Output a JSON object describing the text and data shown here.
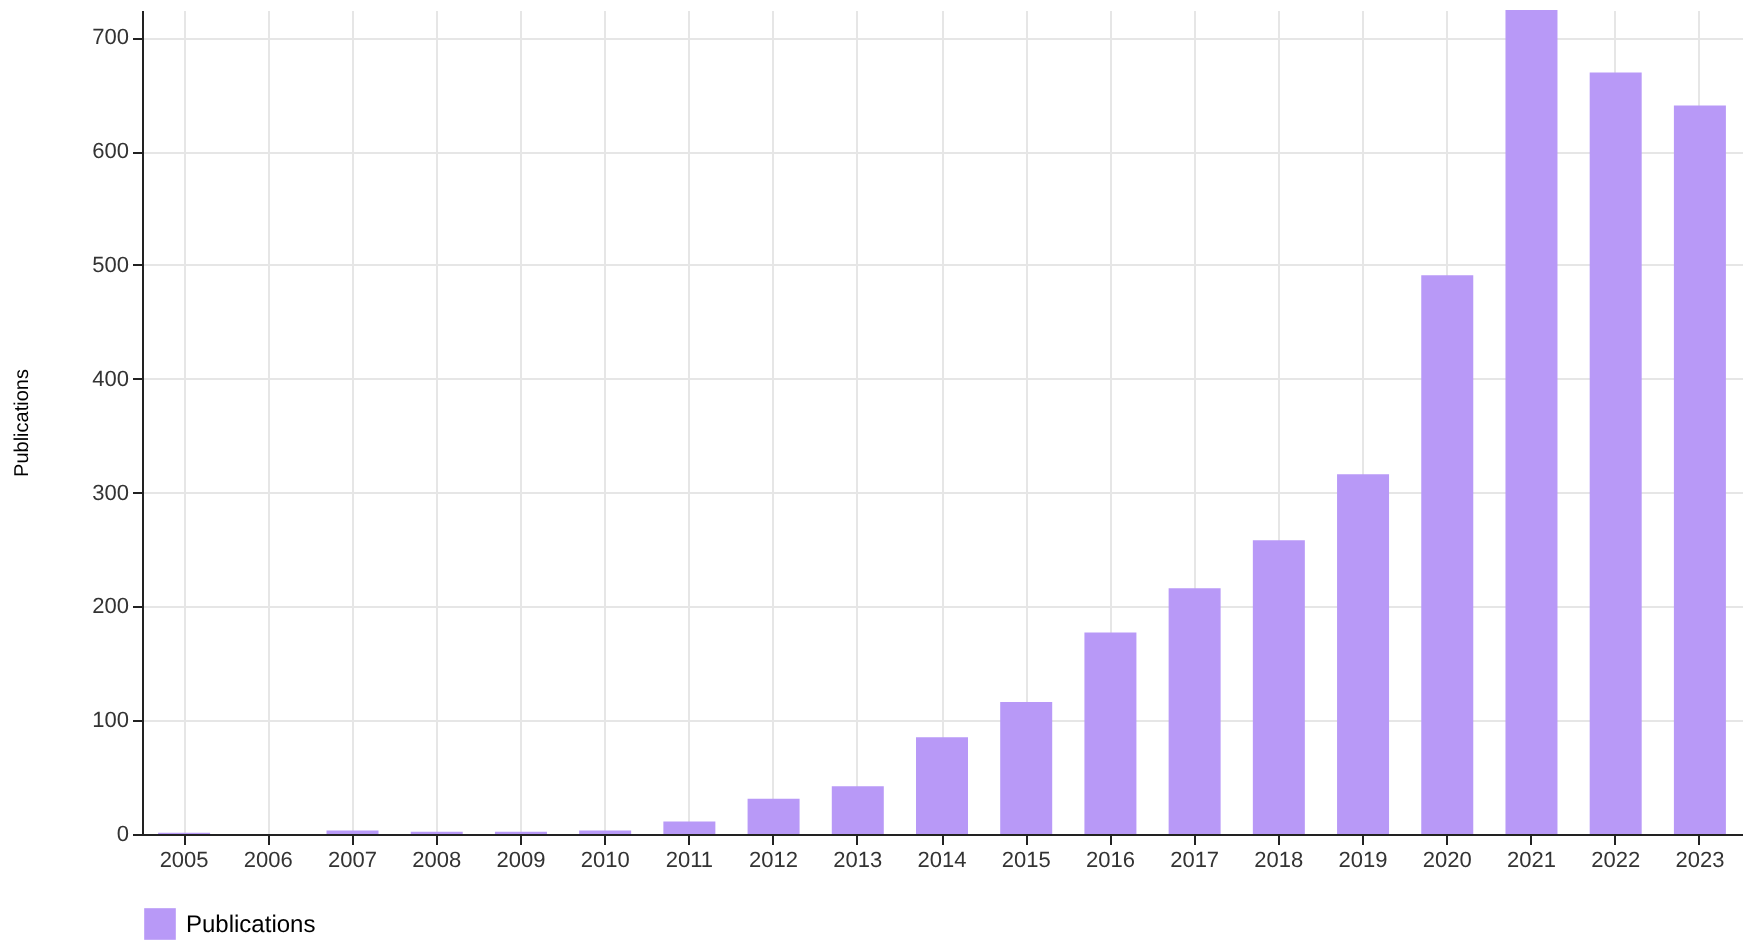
{
  "chart_data": {
    "type": "bar",
    "ylabel": "Publications",
    "categories": [
      "2005",
      "2006",
      "2007",
      "2008",
      "2009",
      "2010",
      "2011",
      "2012",
      "2013",
      "2014",
      "2015",
      "2016",
      "2017",
      "2018",
      "2019",
      "2020",
      "2021",
      "2022",
      "2023"
    ],
    "series": [
      {
        "name": "Publications",
        "color": "#b899f7",
        "values": [
          1,
          0,
          3,
          2,
          2,
          3,
          11,
          31,
          42,
          85,
          116,
          177,
          216,
          258,
          316,
          491,
          724,
          669,
          640
        ]
      }
    ],
    "ylim": [
      0,
      724
    ],
    "yticks": [
      0,
      100,
      200,
      300,
      400,
      500,
      600,
      700
    ],
    "grid": true,
    "legend": "bottom"
  }
}
